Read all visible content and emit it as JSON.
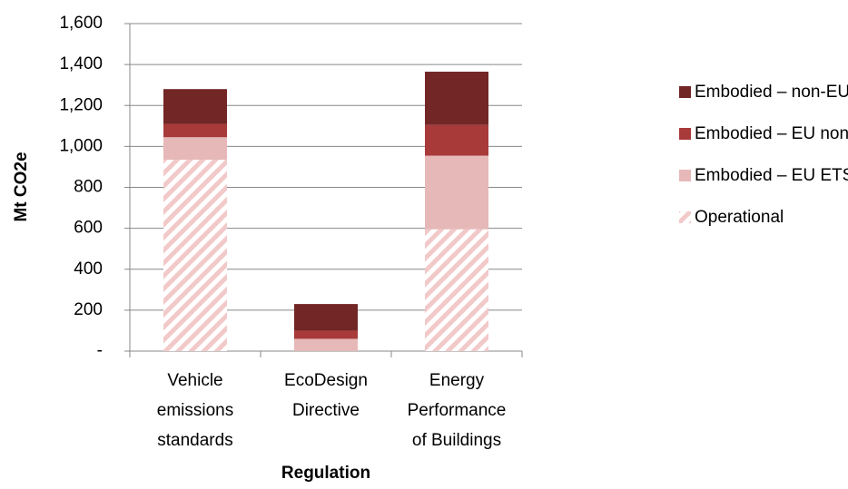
{
  "chart_data": {
    "type": "stacked_bar",
    "categories": [
      "Vehicle\nemissions\nstandards",
      "EcoDesign\nDirective",
      "Energy\nPerformance\nof Buildings"
    ],
    "series": [
      {
        "name": "Operational",
        "color": "#f2c9c9",
        "pattern": "hatch",
        "values": [
          935,
          0,
          595
        ]
      },
      {
        "name": "Embodied – EU ETS",
        "color": "#e6b8b8",
        "values": [
          110,
          60,
          360
        ]
      },
      {
        "name": "Embodied – EU non-traded",
        "color": "#a83a3a",
        "values": [
          65,
          40,
          150
        ]
      },
      {
        "name": "Embodied – non-EU",
        "color": "#722626",
        "values": [
          170,
          130,
          260
        ]
      }
    ],
    "x_label": "Regulation",
    "y_label": "Mt CO2e",
    "ylim": [
      0,
      1600
    ],
    "yticks": [
      {
        "value": 0,
        "label": "-"
      },
      200,
      400,
      600,
      800,
      {
        "value": 1000,
        "label": "1,000"
      },
      {
        "value": 1200,
        "label": "1,200"
      },
      {
        "value": 1400,
        "label": "1,400"
      },
      {
        "value": 1600,
        "label": "1,600"
      }
    ],
    "grid": true,
    "legend": "right"
  }
}
